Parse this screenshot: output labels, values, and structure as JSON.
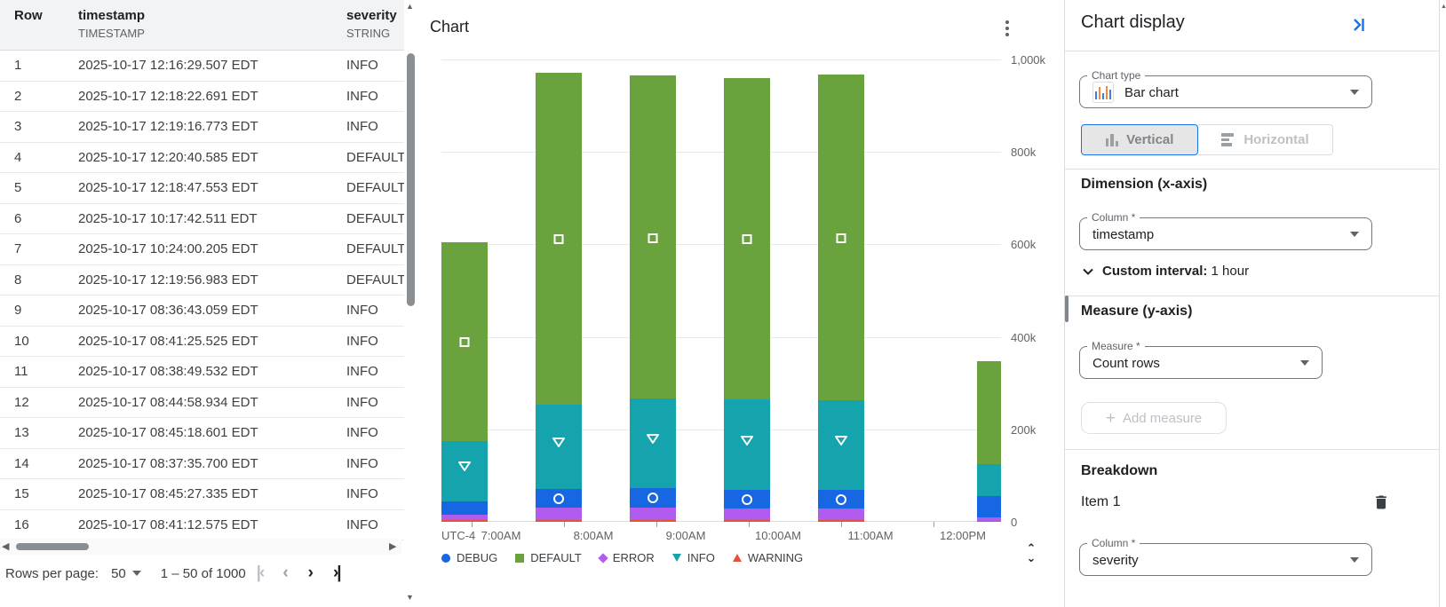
{
  "colors": {
    "accent_blue": "#1a73e8",
    "debug_blue": "#1766e2",
    "default_green": "#6aa23e",
    "error_purple": "#b15ced",
    "info_teal": "#15a3ad",
    "warning_red": "#e8503a"
  },
  "table": {
    "columns": [
      {
        "name": "Row",
        "type": ""
      },
      {
        "name": "timestamp",
        "type": "TIMESTAMP"
      },
      {
        "name": "severity",
        "type": "STRING"
      }
    ],
    "rows": [
      {
        "n": "1",
        "ts": "2025-10-17 12:16:29.507 EDT",
        "sev": "INFO"
      },
      {
        "n": "2",
        "ts": "2025-10-17 12:18:22.691 EDT",
        "sev": "INFO"
      },
      {
        "n": "3",
        "ts": "2025-10-17 12:19:16.773 EDT",
        "sev": "INFO"
      },
      {
        "n": "4",
        "ts": "2025-10-17 12:20:40.585 EDT",
        "sev": "DEFAULT"
      },
      {
        "n": "5",
        "ts": "2025-10-17 12:18:47.553 EDT",
        "sev": "DEFAULT"
      },
      {
        "n": "6",
        "ts": "2025-10-17 10:17:42.511 EDT",
        "sev": "DEFAULT"
      },
      {
        "n": "7",
        "ts": "2025-10-17 10:24:00.205 EDT",
        "sev": "DEFAULT"
      },
      {
        "n": "8",
        "ts": "2025-10-17 12:19:56.983 EDT",
        "sev": "DEFAULT"
      },
      {
        "n": "9",
        "ts": "2025-10-17 08:36:43.059 EDT",
        "sev": "INFO"
      },
      {
        "n": "10",
        "ts": "2025-10-17 08:41:25.525 EDT",
        "sev": "INFO"
      },
      {
        "n": "11",
        "ts": "2025-10-17 08:38:49.532 EDT",
        "sev": "INFO"
      },
      {
        "n": "12",
        "ts": "2025-10-17 08:44:58.934 EDT",
        "sev": "INFO"
      },
      {
        "n": "13",
        "ts": "2025-10-17 08:45:18.601 EDT",
        "sev": "INFO"
      },
      {
        "n": "14",
        "ts": "2025-10-17 08:37:35.700 EDT",
        "sev": "INFO"
      },
      {
        "n": "15",
        "ts": "2025-10-17 08:45:27.335 EDT",
        "sev": "INFO"
      },
      {
        "n": "16",
        "ts": "2025-10-17 08:41:12.575 EDT",
        "sev": "INFO"
      }
    ],
    "pagination": {
      "rows_per_page_label": "Rows per page:",
      "rows_per_page_value": "50",
      "range_label": "1 – 50 of 1000"
    }
  },
  "chart_panel": {
    "title": "Chart"
  },
  "chart_data": {
    "type": "bar",
    "stacked": true,
    "title": "Chart",
    "categories": [
      "7:00AM",
      "8:00AM",
      "9:00AM",
      "10:00AM",
      "11:00AM",
      "12:00PM"
    ],
    "series": [
      {
        "name": "DEBUG",
        "color": "#1766e2",
        "marker": "circle",
        "values": [
          30,
          41,
          42,
          40,
          41,
          45
        ]
      },
      {
        "name": "DEFAULT",
        "color": "#6aa23e",
        "marker": "square",
        "values": [
          430,
          719,
          700,
          695,
          705,
          222
        ]
      },
      {
        "name": "ERROR",
        "color": "#b15ced",
        "marker": "diamond",
        "values": [
          12,
          26,
          27,
          26,
          25,
          8
        ]
      },
      {
        "name": "INFO",
        "color": "#15a3ad",
        "marker": "triangle-down",
        "values": [
          130,
          182,
          193,
          196,
          193,
          70
        ]
      },
      {
        "name": "WARNING",
        "color": "#e8503a",
        "marker": "triangle-up",
        "values": [
          3,
          4,
          4,
          3,
          4,
          2
        ]
      }
    ],
    "unit": "k (thousands of rows)",
    "ylabel": "",
    "xlabel": "",
    "x_axis_note": "UTC-4",
    "ylim": [
      0,
      1000
    ],
    "y_tick_labels": [
      "0",
      "200k",
      "400k",
      "600k",
      "800k",
      "1,000k"
    ],
    "stack_order": [
      "WARNING",
      "ERROR",
      "DEBUG",
      "INFO",
      "DEFAULT"
    ],
    "marker_bars": [
      0,
      1,
      2,
      3,
      4
    ],
    "grid": true,
    "legend_position": "bottom"
  },
  "settings_panel": {
    "title": "Chart display",
    "chart_type": {
      "label": "Chart type",
      "value": "Bar chart"
    },
    "orientation": {
      "vertical": "Vertical",
      "horizontal": "Horizontal",
      "selected": "Vertical"
    },
    "dimension": {
      "heading": "Dimension (x-axis)",
      "column_label": "Column *",
      "column_value": "timestamp",
      "interval_label": "Custom interval:",
      "interval_value": "1 hour"
    },
    "measure": {
      "heading": "Measure (y-axis)",
      "measure_label": "Measure *",
      "measure_value": "Count rows",
      "add_measure_label": "Add measure"
    },
    "breakdown": {
      "heading": "Breakdown",
      "item_label": "Item 1",
      "column_label": "Column *",
      "column_value": "severity"
    }
  }
}
